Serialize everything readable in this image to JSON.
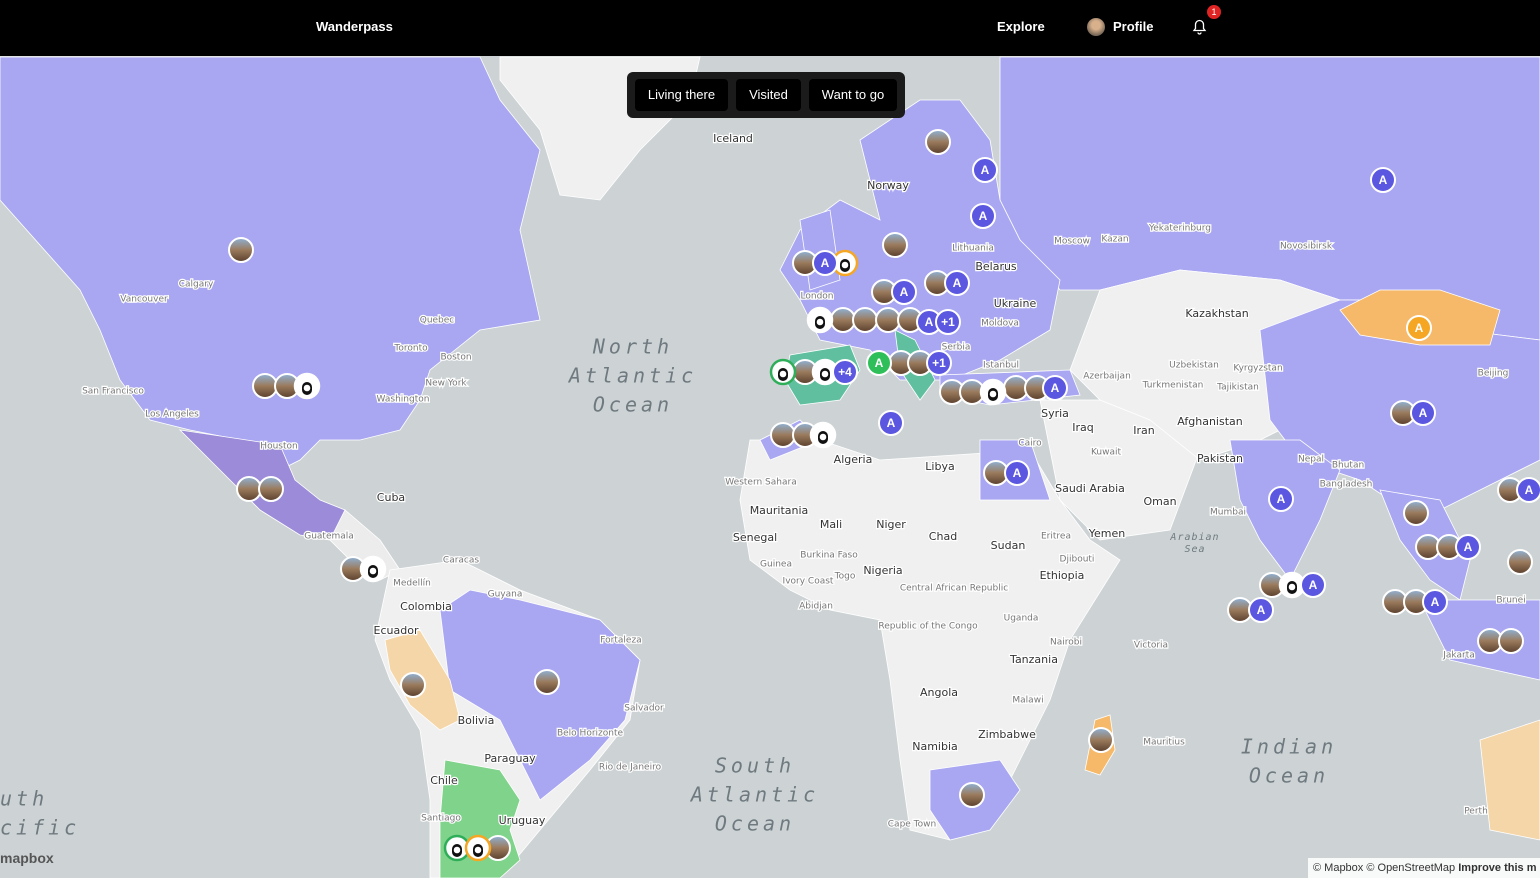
{
  "nav": {
    "brand": "Wanderpass",
    "links": [
      "Explore",
      "Profile"
    ],
    "notification_count": 1
  },
  "filters": [
    "Living there",
    "Visited",
    "Want to go"
  ],
  "map": {
    "labels": [
      "Iceland",
      "Norway",
      "Lithuania",
      "Belarus",
      "Moscow",
      "Kazan",
      "Yekaterinburg",
      "Novosibirsk",
      "Ukraine",
      "Moldova",
      "Kazakhstan",
      "London",
      "Serbia",
      "Istanbul",
      "Uzbekistan",
      "Kyrgyzstan",
      "Turkmenistan",
      "Tajikistan",
      "Azerbaijan",
      "Syria",
      "Iraq",
      "Iran",
      "Afghanistan",
      "Beijing",
      "Cairo",
      "Kuwait",
      "Pakistan",
      "Nepal",
      "Bhutan",
      "Bangladesh",
      "Algeria",
      "Libya",
      "Saudi Arabia",
      "Oman",
      "Western Sahara",
      "Mauritania",
      "Mali",
      "Niger",
      "Chad",
      "Sudan",
      "Eritrea",
      "Yemen",
      "Djibouti",
      "Senegal",
      "Burkina Faso",
      "Guinea",
      "Ivory Coast",
      "Togo",
      "Nigeria",
      "Ethiopia",
      "Central African Republic",
      "Abidjan",
      "Mumbai",
      "Uganda",
      "Republic of the Congo",
      "Nairobi",
      "Tanzania",
      "Victoria",
      "Angola",
      "Malawi",
      "Zimbabwe",
      "Namibia",
      "Mauritius",
      "Cape Town",
      "Perth",
      "Jakarta",
      "Brunei",
      "Calgary",
      "Vancouver",
      "Quebec",
      "Toronto",
      "Boston",
      "New York",
      "Washington",
      "San Francisco",
      "Los Angeles",
      "Houston",
      "Cuba",
      "Guatemala",
      "Caracas",
      "Medellín",
      "Guyana",
      "Colombia",
      "Ecuador",
      "Fortaleza",
      "Salvador",
      "Bolivia",
      "Belo Horizonte",
      "Paraguay",
      "Rio de Janeiro",
      "Chile",
      "Santiago",
      "Uruguay"
    ],
    "ocean_labels": [
      [
        "North",
        "Atlantic",
        "Ocean"
      ],
      [
        "South",
        "Atlantic",
        "Ocean"
      ],
      [
        "Indian",
        "Ocean"
      ],
      [
        "uth",
        "cific"
      ],
      [
        "Arabian",
        "Sea"
      ]
    ],
    "markers": [
      "A",
      "A",
      "A",
      "A",
      "A",
      "A",
      "A",
      "+1",
      "A",
      "+1",
      "+4",
      "A",
      "A",
      "A",
      "A",
      "A",
      "A",
      "A",
      "A",
      "A",
      "A",
      "A"
    ]
  },
  "attribution": {
    "logo": "mapbox",
    "text": "© Mapbox © OpenStreetMap",
    "link": "Improve this m"
  }
}
